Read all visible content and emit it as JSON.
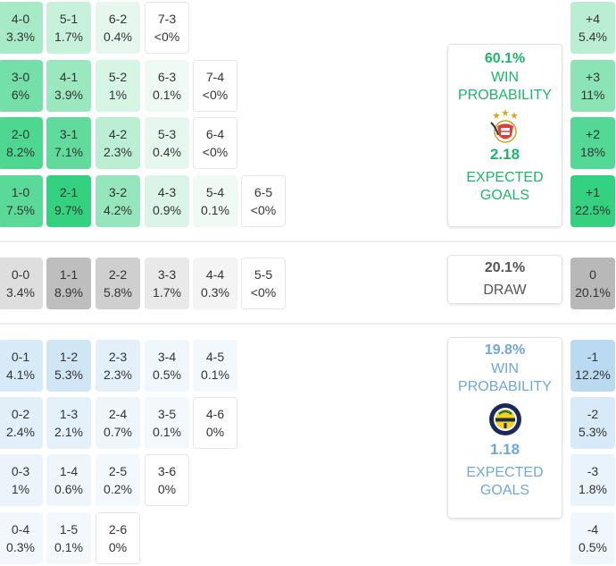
{
  "chart_data": {
    "type": "table",
    "home_team": {
      "win_probability": "60.1%",
      "win_label": "WIN PROBABILITY",
      "expected_goals": "2.18",
      "xg_label": "EXPECTED GOALS",
      "color": "#1db56a",
      "crest_icon": "benfica-crest-icon"
    },
    "draw": {
      "probability": "20.1%",
      "label": "DRAW",
      "color": "#555555"
    },
    "away_team": {
      "win_probability": "19.8%",
      "win_label": "WIN PROBABILITY",
      "expected_goals": "1.18",
      "xg_label": "EXPECTED GOALS",
      "color": "#6fa8d6",
      "crest_icon": "fenerbahce-crest-icon"
    },
    "home_win_scores": [
      [
        {
          "score": "4-0",
          "prob": "3.3%",
          "value": 3.3
        },
        {
          "score": "5-1",
          "prob": "1.7%",
          "value": 1.7
        },
        {
          "score": "6-2",
          "prob": "0.4%",
          "value": 0.4
        },
        {
          "score": "7-3",
          "prob": "<0%",
          "value": 0
        }
      ],
      [
        {
          "score": "3-0",
          "prob": "6%",
          "value": 6
        },
        {
          "score": "4-1",
          "prob": "3.9%",
          "value": 3.9
        },
        {
          "score": "5-2",
          "prob": "1%",
          "value": 1
        },
        {
          "score": "6-3",
          "prob": "0.1%",
          "value": 0.1
        },
        {
          "score": "7-4",
          "prob": "<0%",
          "value": 0
        }
      ],
      [
        {
          "score": "2-0",
          "prob": "8.2%",
          "value": 8.2
        },
        {
          "score": "3-1",
          "prob": "7.1%",
          "value": 7.1
        },
        {
          "score": "4-2",
          "prob": "2.3%",
          "value": 2.3
        },
        {
          "score": "5-3",
          "prob": "0.4%",
          "value": 0.4
        },
        {
          "score": "6-4",
          "prob": "<0%",
          "value": 0
        }
      ],
      [
        {
          "score": "1-0",
          "prob": "7.5%",
          "value": 7.5
        },
        {
          "score": "2-1",
          "prob": "9.7%",
          "value": 9.7
        },
        {
          "score": "3-2",
          "prob": "4.2%",
          "value": 4.2
        },
        {
          "score": "4-3",
          "prob": "0.9%",
          "value": 0.9
        },
        {
          "score": "5-4",
          "prob": "0.1%",
          "value": 0.1
        },
        {
          "score": "6-5",
          "prob": "<0%",
          "value": 0
        }
      ]
    ],
    "draw_scores": [
      {
        "score": "0-0",
        "prob": "3.4%",
        "value": 3.4
      },
      {
        "score": "1-1",
        "prob": "8.9%",
        "value": 8.9
      },
      {
        "score": "2-2",
        "prob": "5.8%",
        "value": 5.8
      },
      {
        "score": "3-3",
        "prob": "1.7%",
        "value": 1.7
      },
      {
        "score": "4-4",
        "prob": "0.3%",
        "value": 0.3
      },
      {
        "score": "5-5",
        "prob": "<0%",
        "value": 0
      }
    ],
    "away_win_scores": [
      [
        {
          "score": "0-1",
          "prob": "4.1%",
          "value": 4.1
        },
        {
          "score": "1-2",
          "prob": "5.3%",
          "value": 5.3
        },
        {
          "score": "2-3",
          "prob": "2.3%",
          "value": 2.3
        },
        {
          "score": "3-4",
          "prob": "0.5%",
          "value": 0.5
        },
        {
          "score": "4-5",
          "prob": "0.1%",
          "value": 0.1
        }
      ],
      [
        {
          "score": "0-2",
          "prob": "2.4%",
          "value": 2.4
        },
        {
          "score": "1-3",
          "prob": "2.1%",
          "value": 2.1
        },
        {
          "score": "2-4",
          "prob": "0.7%",
          "value": 0.7
        },
        {
          "score": "3-5",
          "prob": "0.1%",
          "value": 0.1
        },
        {
          "score": "4-6",
          "prob": "0%",
          "value": 0
        }
      ],
      [
        {
          "score": "0-3",
          "prob": "1%",
          "value": 1
        },
        {
          "score": "1-4",
          "prob": "0.6%",
          "value": 0.6
        },
        {
          "score": "2-5",
          "prob": "0.2%",
          "value": 0.2
        },
        {
          "score": "3-6",
          "prob": "0%",
          "value": 0
        }
      ],
      [
        {
          "score": "0-4",
          "prob": "0.3%",
          "value": 0.3
        },
        {
          "score": "1-5",
          "prob": "0.1%",
          "value": 0.1
        },
        {
          "score": "2-6",
          "prob": "0%",
          "value": 0
        }
      ]
    ],
    "margins": {
      "home": [
        {
          "margin": "+4",
          "prob": "5.4%",
          "value": 5.4
        },
        {
          "margin": "+3",
          "prob": "11%",
          "value": 11
        },
        {
          "margin": "+2",
          "prob": "18%",
          "value": 18
        },
        {
          "margin": "+1",
          "prob": "22.5%",
          "value": 22.5
        }
      ],
      "draw": [
        {
          "margin": "0",
          "prob": "20.1%",
          "value": 20.1
        }
      ],
      "away": [
        {
          "margin": "-1",
          "prob": "12.2%",
          "value": 12.2
        },
        {
          "margin": "-2",
          "prob": "5.3%",
          "value": 5.3
        },
        {
          "margin": "-3",
          "prob": "1.8%",
          "value": 1.8
        },
        {
          "margin": "-4",
          "prob": "0.5%",
          "value": 0.5
        }
      ]
    }
  }
}
